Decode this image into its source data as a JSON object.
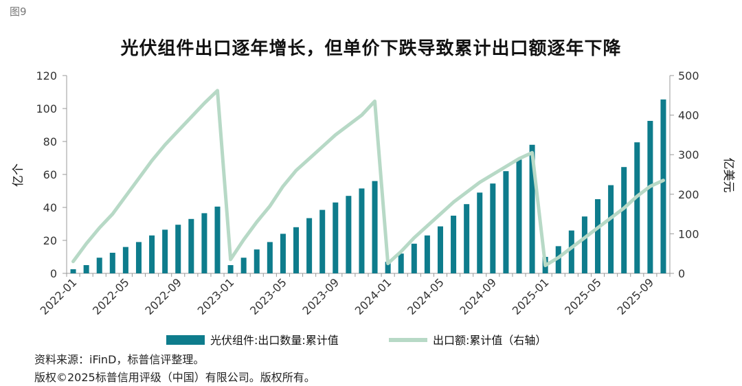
{
  "figure_label": "图9",
  "footer": {
    "source": "资料来源：iFinD，标普信评整理。",
    "copyright": "版权©2025标普信用评级（中国）有限公司。版权所有。"
  },
  "colors": {
    "bar": "#0e7c8c",
    "line": "#b7d9c6",
    "axis": "#999999"
  },
  "chart_data": {
    "type": "bar+line",
    "title": "光伏组件出口逐年增长，但单价下跌导致累计出口额逐年下降",
    "ylabel_left": "亿个",
    "ylabel_right": "亿美元",
    "ylim_left": [
      0,
      120
    ],
    "yticks_left": [
      "0",
      "20",
      "40",
      "60",
      "80",
      "100",
      "120"
    ],
    "ylim_right": [
      0,
      500
    ],
    "yticks_right": [
      "0",
      "100",
      "200",
      "300",
      "400",
      "500"
    ],
    "categories": [
      "2022-01",
      "2022-02",
      "2022-03",
      "2022-04",
      "2022-05",
      "2022-06",
      "2022-07",
      "2022-08",
      "2022-09",
      "2022-10",
      "2022-11",
      "2022-12",
      "2023-01",
      "2023-02",
      "2023-03",
      "2023-04",
      "2023-05",
      "2023-06",
      "2023-07",
      "2023-08",
      "2023-09",
      "2023-10",
      "2023-11",
      "2023-12",
      "2024-01",
      "2024-02",
      "2024-03",
      "2024-04",
      "2024-05",
      "2024-06",
      "2024-07",
      "2024-08",
      "2024-09",
      "2024-10",
      "2024-11",
      "2024-12",
      "2025-01",
      "2025-02",
      "2025-03",
      "2025-04",
      "2025-05",
      "2025-06",
      "2025-07",
      "2025-08",
      "2025-09",
      "2025-10"
    ],
    "xtick_labels": [
      "2022-01",
      "2022-05",
      "2022-09",
      "2023-01",
      "2023-05",
      "2023-09",
      "2024-01",
      "2024-05",
      "2024-09",
      "2025-01",
      "2025-05",
      "2025-09"
    ],
    "series": [
      {
        "name": "光伏组件:出口数量:累计值",
        "type": "bar",
        "axis": "left",
        "values": [
          2.5,
          5,
          9.5,
          12.5,
          16,
          19,
          23,
          26.5,
          29.5,
          33,
          36.5,
          40.5,
          5,
          9.5,
          14.5,
          19,
          24,
          28,
          33.5,
          38.5,
          43,
          47,
          51.5,
          56,
          7,
          12,
          18,
          23,
          28.5,
          35,
          42,
          49,
          54.5,
          62,
          69,
          78,
          10,
          16.5,
          26,
          34.5,
          45,
          53.5,
          64.5,
          79.5,
          92.5,
          105.5
        ]
      },
      {
        "name": "出口额:累计值（右轴）",
        "type": "line",
        "axis": "right",
        "values": [
          30,
          75,
          115,
          150,
          195,
          240,
          285,
          325,
          360,
          395,
          430,
          462,
          35,
          85,
          130,
          170,
          220,
          260,
          290,
          320,
          350,
          375,
          400,
          435,
          25,
          55,
          90,
          120,
          150,
          180,
          205,
          230,
          250,
          270,
          290,
          305,
          20,
          40,
          65,
          90,
          115,
          140,
          165,
          195,
          220,
          235
        ]
      }
    ],
    "legend_position": "bottom"
  }
}
